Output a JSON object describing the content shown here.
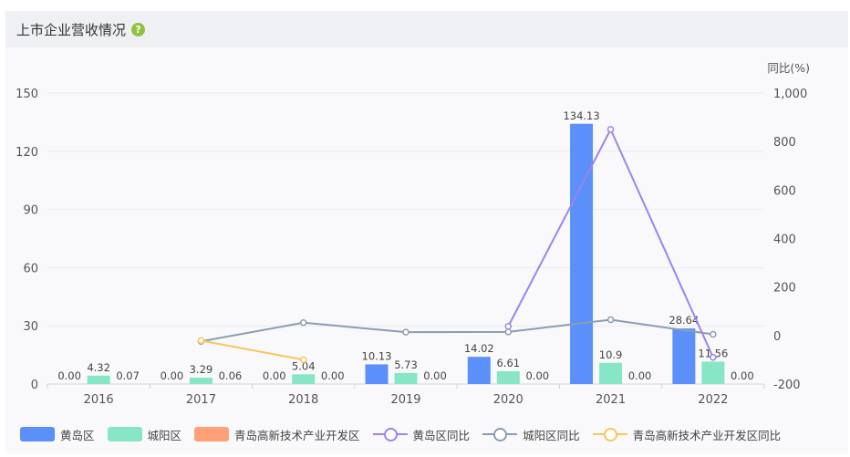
{
  "header": {
    "title": "上市企业营收情况",
    "help_icon": "?"
  },
  "chart_data": {
    "type": "bar",
    "categories": [
      "2016",
      "2017",
      "2018",
      "2019",
      "2020",
      "2021",
      "2022"
    ],
    "y_left": {
      "ticks": [
        "0",
        "30",
        "60",
        "90",
        "120",
        "150"
      ],
      "ylim": [
        0,
        150
      ]
    },
    "y_right": {
      "label": "同比(%)",
      "ticks": [
        "-200",
        "0",
        "200",
        "400",
        "600",
        "800",
        "1,000"
      ],
      "ylim": [
        -200,
        1000
      ]
    },
    "bar_series": [
      {
        "name": "黄岛区",
        "color": "#5b8ff9",
        "values": [
          0,
          0,
          0,
          10.13,
          14.02,
          134.13,
          28.64
        ],
        "labels": [
          "0.00",
          "0.00",
          "0.00",
          "10.13",
          "14.02",
          "134.13",
          "28.64"
        ]
      },
      {
        "name": "城阳区",
        "color": "#86e6c5",
        "values": [
          4.32,
          3.29,
          5.04,
          5.73,
          6.61,
          10.9,
          11.56
        ],
        "labels": [
          "4.32",
          "3.29",
          "5.04",
          "5.73",
          "6.61",
          "10.9",
          "11.56"
        ]
      },
      {
        "name": "青岛高新技术产业开发区",
        "color": "#ffa177",
        "values": [
          0.07,
          0.06,
          0,
          0,
          0,
          0,
          0
        ],
        "labels": [
          "0.07",
          "0.06",
          "0.00",
          "0.00",
          "0.00",
          "0.00",
          "0.00"
        ]
      }
    ],
    "line_series": [
      {
        "name": "黄岛区同比",
        "color": "#9b84ef",
        "values": [
          null,
          null,
          null,
          null,
          38,
          850,
          -90
        ]
      },
      {
        "name": "城阳区同比",
        "color": "#8b9db3",
        "values": [
          null,
          -24,
          53,
          14,
          15,
          65,
          5
        ]
      },
      {
        "name": "青岛高新技术产业开发区同比",
        "color": "#f9c55a",
        "values": [
          null,
          -21,
          -100,
          null,
          null,
          null,
          null
        ]
      }
    ],
    "legend_position": "bottom-left",
    "grid": true
  }
}
